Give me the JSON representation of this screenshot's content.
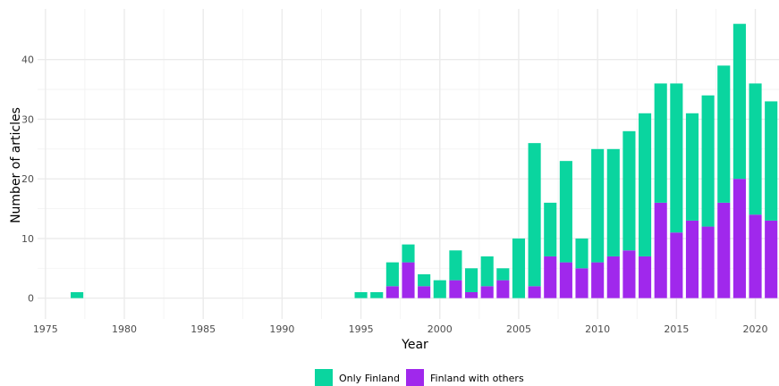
{
  "chart_data": {
    "type": "bar",
    "stacked": true,
    "xlabel": "Year",
    "ylabel": "Number of articles",
    "xlim": [
      1974.5,
      2021.5
    ],
    "ylim": [
      -3.5,
      48.5
    ],
    "x_ticks": [
      1975,
      1980,
      1985,
      1990,
      1995,
      2000,
      2005,
      2010,
      2015,
      2020
    ],
    "y_ticks": [
      0,
      10,
      20,
      30,
      40
    ],
    "grid": true,
    "legend_position": "bottom",
    "colors": {
      "only_finland": "#0ad59f",
      "finland_with_others": "#a028ec"
    },
    "years": [
      1977,
      1995,
      1996,
      1997,
      1998,
      1999,
      2000,
      2001,
      2002,
      2003,
      2004,
      2005,
      2006,
      2007,
      2008,
      2009,
      2010,
      2011,
      2012,
      2013,
      2014,
      2015,
      2016,
      2017,
      2018,
      2019,
      2020,
      2021
    ],
    "series": [
      {
        "name": "Only Finland",
        "values": [
          1,
          1,
          1,
          4,
          3,
          2,
          3,
          5,
          4,
          5,
          2,
          10,
          24,
          9,
          17,
          5,
          19,
          18,
          20,
          24,
          20,
          25,
          18,
          22,
          23,
          26,
          22,
          20
        ]
      },
      {
        "name": "Finland with others",
        "values": [
          0,
          0,
          0,
          2,
          6,
          2,
          0,
          3,
          1,
          2,
          3,
          0,
          2,
          7,
          6,
          5,
          6,
          7,
          8,
          7,
          16,
          11,
          13,
          12,
          16,
          20,
          14,
          13
        ]
      }
    ]
  }
}
